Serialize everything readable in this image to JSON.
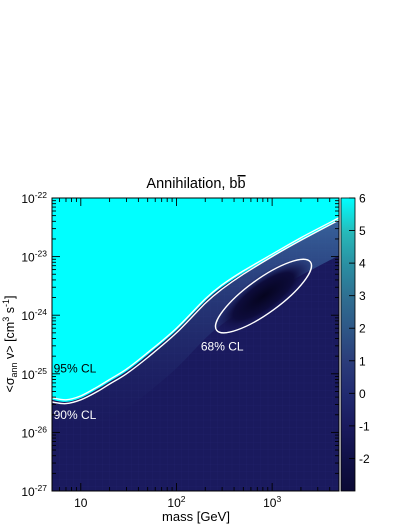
{
  "chart_data": {
    "type": "heatmap",
    "title": "Annihilation, b",
    "title_bbar": "b",
    "xlabel": "mass [GeV]",
    "ylabel_parts": {
      "open": "<σ",
      "sub": "ann",
      "mid": " v> [cm",
      "sup1": "3",
      "s": " s",
      "sup2": "-1",
      "close": "]"
    },
    "xscale": "log",
    "yscale": "log",
    "xlim": [
      5,
      5000
    ],
    "ylim": [
      1e-27,
      1e-22
    ],
    "x_ticks": [
      {
        "value": 10,
        "label": "10"
      },
      {
        "value": 100,
        "base": "10",
        "exp": "2"
      },
      {
        "value": 1000,
        "base": "10",
        "exp": "3"
      }
    ],
    "y_ticks": [
      {
        "value": 1e-22,
        "base": "10",
        "exp": "-22"
      },
      {
        "value": 1e-23,
        "base": "10",
        "exp": "-23"
      },
      {
        "value": 1e-24,
        "base": "10",
        "exp": "-24"
      },
      {
        "value": 1e-25,
        "base": "10",
        "exp": "-25"
      },
      {
        "value": 1e-26,
        "base": "10",
        "exp": "-26"
      },
      {
        "value": 1e-27,
        "base": "10",
        "exp": "-27"
      }
    ],
    "colorbar": {
      "range": [
        -3,
        6
      ],
      "ticks": [
        "6",
        "5",
        "4",
        "3",
        "2",
        "1",
        "0",
        "-1",
        "-2"
      ],
      "tick_values": [
        6,
        5,
        4,
        3,
        2,
        1,
        0,
        -1,
        -2
      ],
      "colors": [
        "#0b0a35",
        "#1a1a5e",
        "#2b3c7a",
        "#2f6e91",
        "#2aa6ad",
        "#00ffff"
      ]
    },
    "contours": [
      {
        "label": "68% CL",
        "shape": "closed",
        "center_mass_gev": 800,
        "center_sigv": 1.5e-24,
        "mass_span_gev": [
          220,
          3000
        ],
        "sigv_span": [
          2.5e-25,
          1.8e-23
        ]
      },
      {
        "label": "90% CL",
        "shape": "curve",
        "points": [
          [
            5,
            3.3e-26
          ],
          [
            7,
            3.1e-26
          ],
          [
            10,
            3.6e-26
          ],
          [
            15,
            5e-26
          ],
          [
            20,
            6.7e-26
          ],
          [
            30,
            1e-25
          ],
          [
            50,
            1.9e-25
          ],
          [
            100,
            5e-25
          ],
          [
            200,
            1.6e-24
          ],
          [
            300,
            2.8e-24
          ],
          [
            500,
            5e-24
          ],
          [
            1000,
            1e-23
          ],
          [
            2000,
            1.9e-23
          ],
          [
            5000,
            4.2e-23
          ]
        ]
      },
      {
        "label": "95% CL",
        "shape": "curve",
        "points": [
          [
            5,
            3.9e-26
          ],
          [
            7,
            3.6e-26
          ],
          [
            10,
            4.2e-26
          ],
          [
            15,
            6e-26
          ],
          [
            20,
            8e-26
          ],
          [
            30,
            1.2e-25
          ],
          [
            50,
            2.3e-25
          ],
          [
            100,
            6e-25
          ],
          [
            200,
            1.9e-24
          ],
          [
            300,
            3.3e-24
          ],
          [
            500,
            5.7e-24
          ],
          [
            1000,
            1.1e-23
          ],
          [
            2000,
            2.1e-23
          ],
          [
            5000,
            4.6e-23
          ]
        ]
      }
    ],
    "grid": false,
    "legend": "none"
  }
}
